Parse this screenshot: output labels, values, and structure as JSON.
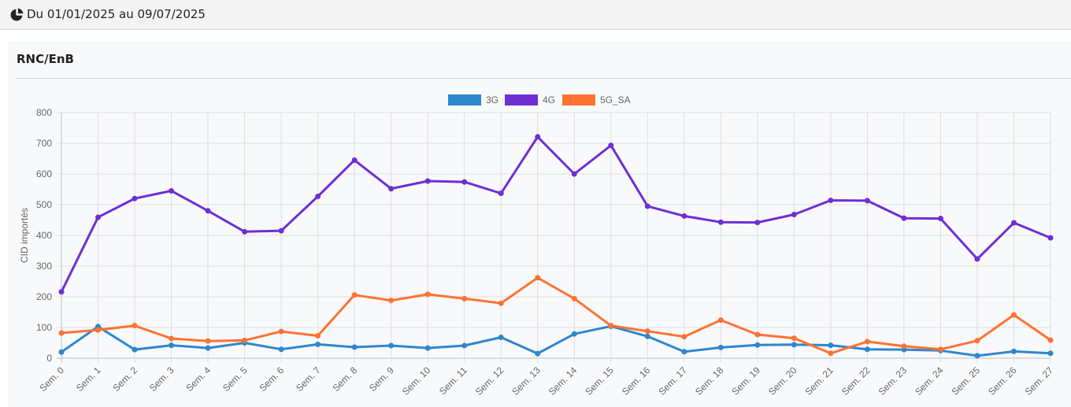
{
  "header": {
    "date_range": "Du 01/01/2025 au 09/07/2025",
    "icon": "pie-chart-icon"
  },
  "panel": {
    "title": "RNC/EnB"
  },
  "chart_data": {
    "type": "line",
    "title": "",
    "xlabel": "",
    "ylabel": "CID importés",
    "ylim": [
      0,
      800
    ],
    "yticks": [
      0,
      100,
      200,
      300,
      400,
      500,
      600,
      700,
      800
    ],
    "grid": true,
    "legend_position": "top-center",
    "categories": [
      "Sem. 0",
      "Sem. 1",
      "Sem. 2",
      "Sem. 3",
      "Sem. 4",
      "Sem. 5",
      "Sem. 6",
      "Sem. 7",
      "Sem. 8",
      "Sem. 9",
      "Sem. 10",
      "Sem. 11",
      "Sem. 12",
      "Sem. 13",
      "Sem. 14",
      "Sem. 15",
      "Sem. 16",
      "Sem. 17",
      "Sem. 18",
      "Sem. 19",
      "Sem. 20",
      "Sem. 21",
      "Sem. 22",
      "Sem. 23",
      "Sem. 24",
      "Sem. 25",
      "Sem. 26",
      "Sem. 27"
    ],
    "series": [
      {
        "name": "3G",
        "color": "#2e86cf",
        "values": [
          20,
          103,
          28,
          42,
          33,
          50,
          29,
          45,
          36,
          41,
          33,
          41,
          68,
          15,
          79,
          104,
          71,
          21,
          35,
          43,
          44,
          42,
          29,
          28,
          25,
          8,
          22,
          16
        ]
      },
      {
        "name": "4G",
        "color": "#6d2fd3",
        "values": [
          216,
          459,
          520,
          545,
          480,
          412,
          415,
          527,
          645,
          552,
          577,
          574,
          537,
          721,
          600,
          693,
          495,
          463,
          443,
          442,
          468,
          514,
          513,
          456,
          455,
          323,
          441,
          392
        ]
      },
      {
        "name": "5G_SA",
        "color": "#ff7232",
        "values": [
          82,
          92,
          106,
          64,
          56,
          58,
          87,
          73,
          206,
          188,
          208,
          194,
          179,
          262,
          194,
          106,
          88,
          70,
          124,
          77,
          65,
          16,
          54,
          39,
          29,
          57,
          141,
          59
        ]
      }
    ]
  }
}
